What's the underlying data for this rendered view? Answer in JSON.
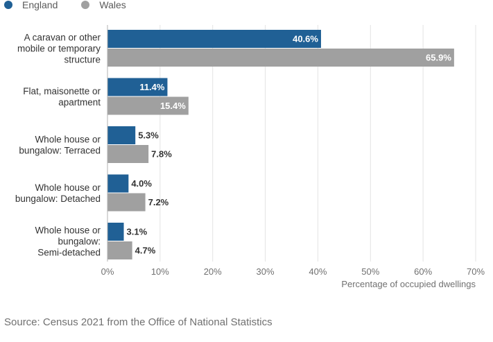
{
  "legend": {
    "england_label": "England",
    "wales_label": "Wales"
  },
  "source": "Source: Census 2021 from the Office of National Statistics",
  "chart_data": {
    "type": "bar",
    "orientation": "horizontal",
    "categories": [
      [
        "A caravan or other",
        "mobile or temporary",
        "structure"
      ],
      [
        "Flat, maisonette or",
        "apartment"
      ],
      [
        "Whole house or",
        "bungalow: Terraced"
      ],
      [
        "Whole house or",
        "bungalow: Detached"
      ],
      [
        "Whole house or",
        "bungalow:",
        "Semi-detached"
      ]
    ],
    "series": [
      {
        "name": "England",
        "color": "#206095",
        "values": [
          40.6,
          11.4,
          5.3,
          4.0,
          3.1
        ],
        "labels": [
          "40.6%",
          "11.4%",
          "5.3%",
          "4.0%",
          "3.1%"
        ]
      },
      {
        "name": "Wales",
        "color": "#a0a0a0",
        "values": [
          65.9,
          15.4,
          7.8,
          7.2,
          4.7
        ],
        "labels": [
          "65.9%",
          "15.4%",
          "7.8%",
          "7.2%",
          "4.7%"
        ]
      }
    ],
    "xlim": [
      0,
      70
    ],
    "xticks": [
      0,
      10,
      20,
      30,
      40,
      50,
      60,
      70
    ],
    "xtick_labels": [
      "0%",
      "10%",
      "20%",
      "30%",
      "40%",
      "50%",
      "60%",
      "70%"
    ],
    "xlabel": "Percentage of occupied dwellings",
    "ylabel": "",
    "grid": true,
    "legend_position": "top-left"
  }
}
